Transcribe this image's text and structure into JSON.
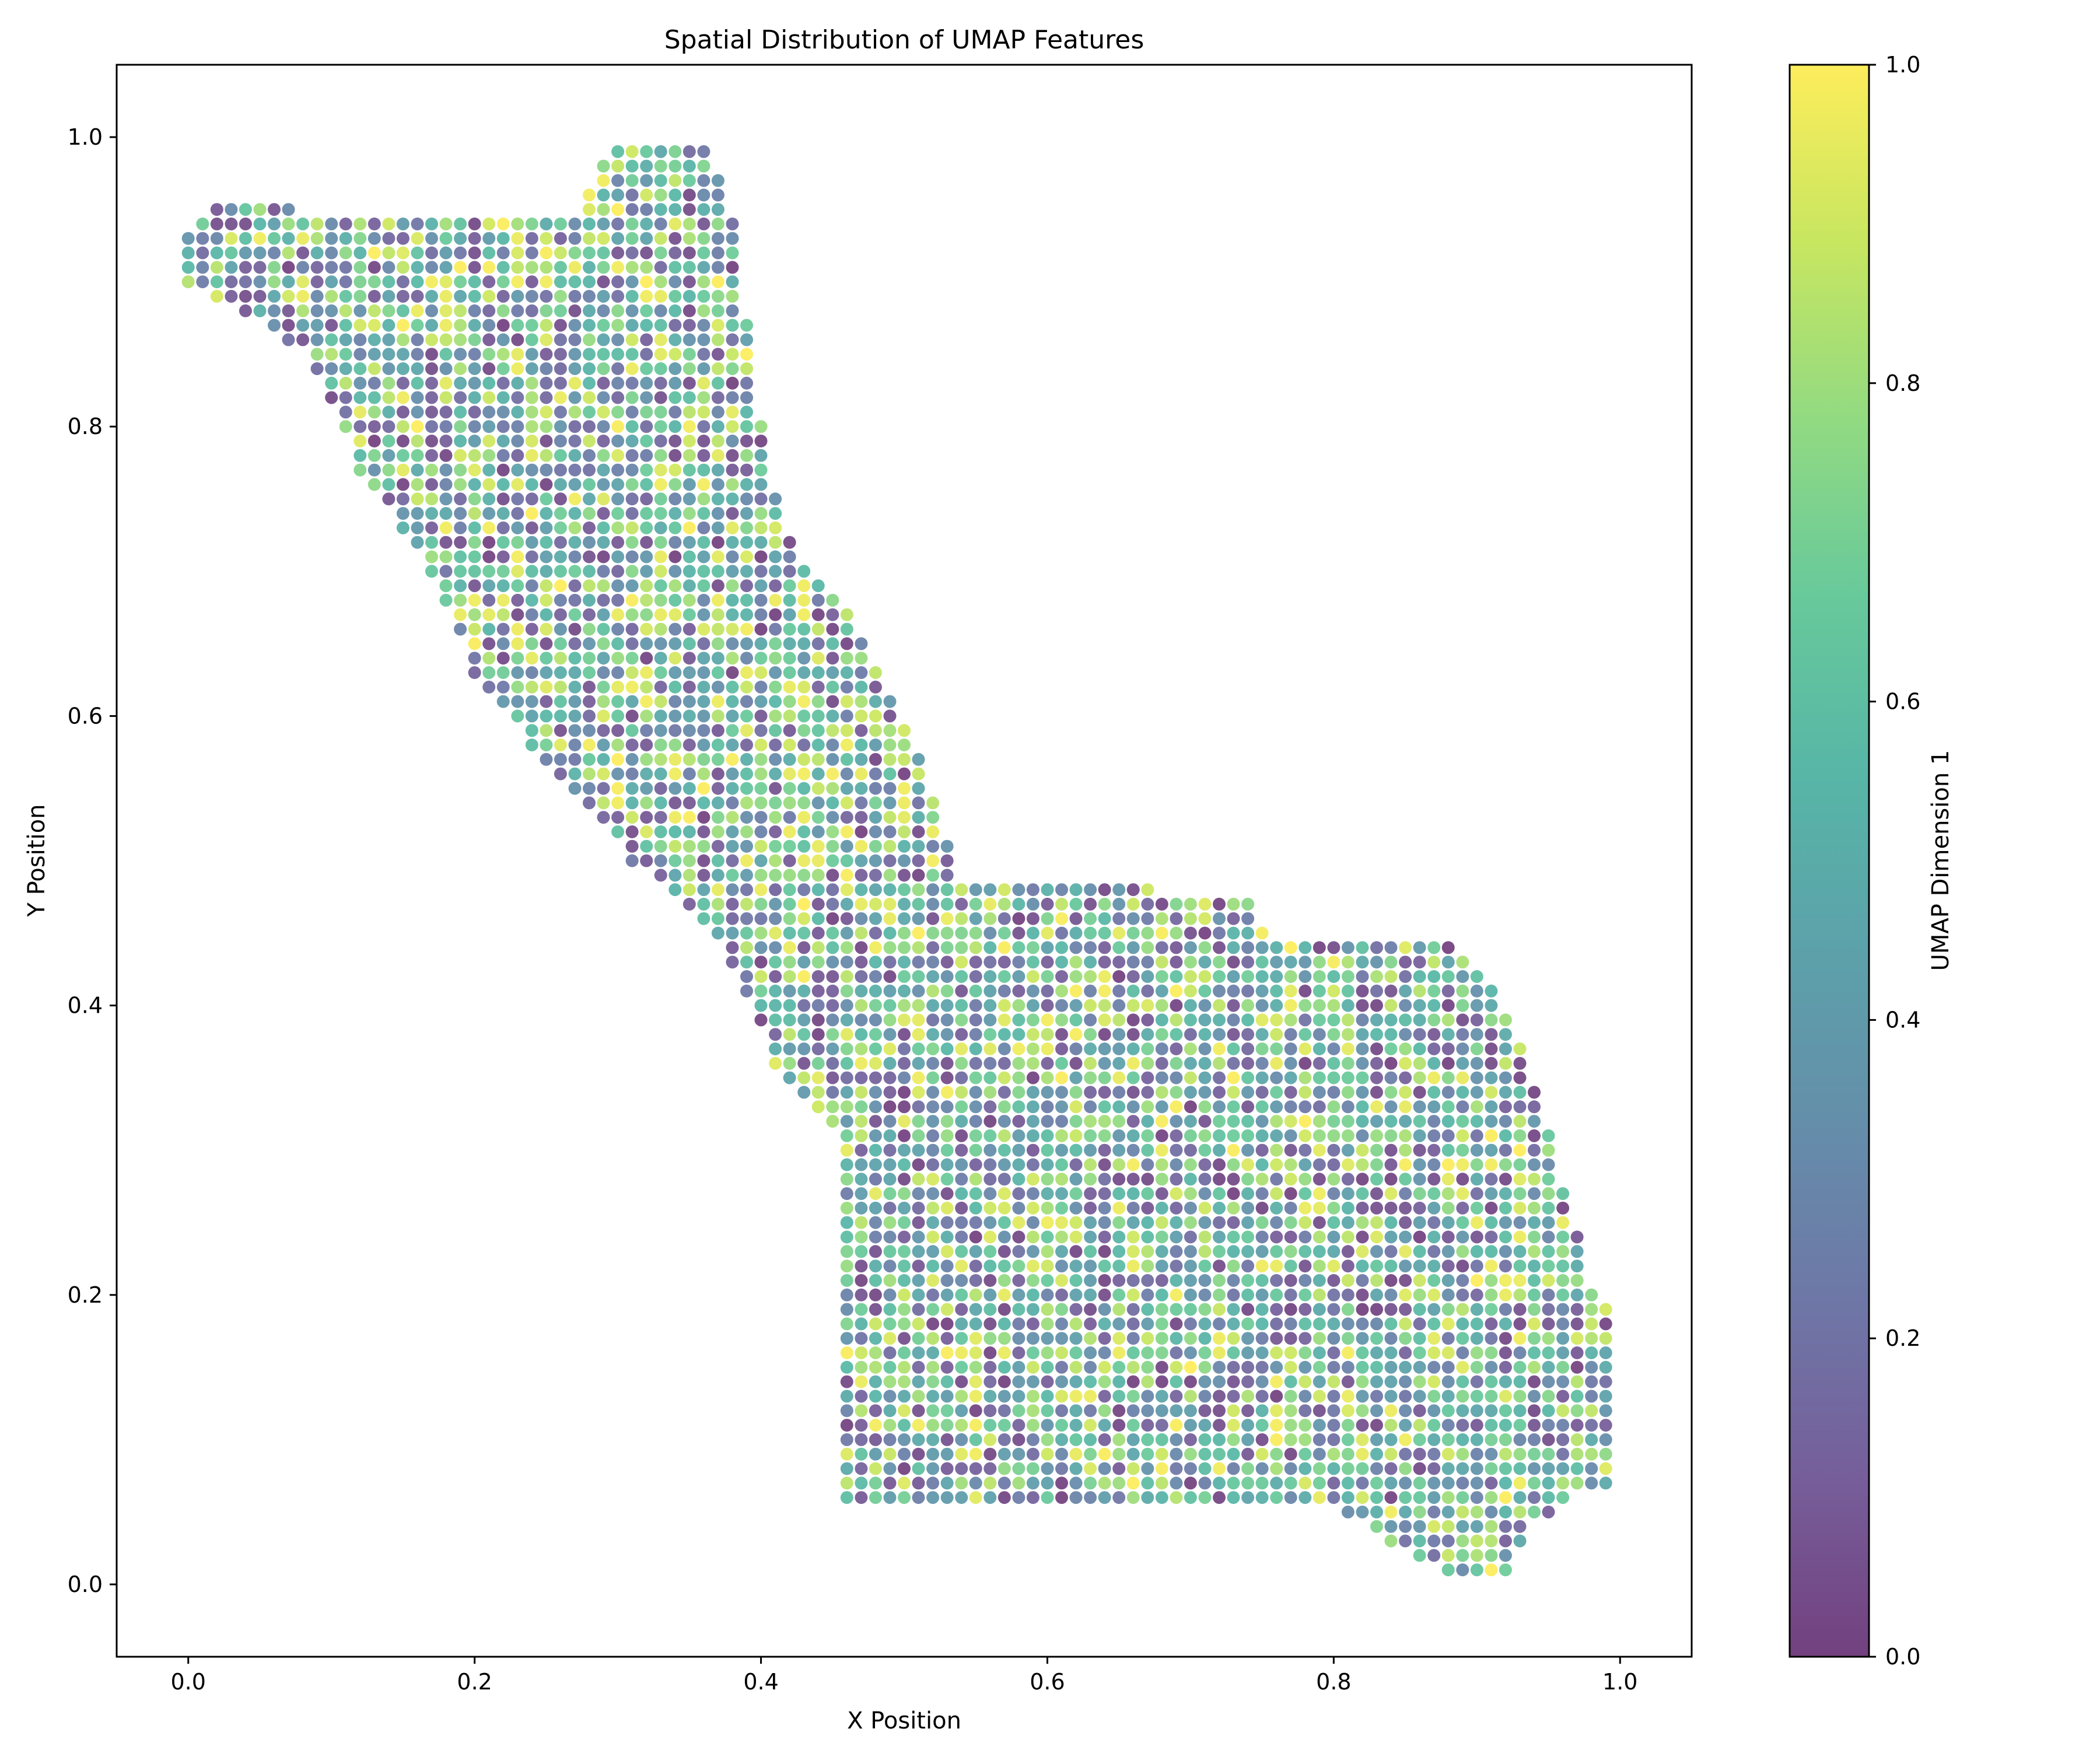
{
  "chart_data": {
    "type": "scatter",
    "title": "Spatial Distribution of UMAP Features",
    "xlabel": "X Position",
    "ylabel": "Y Position",
    "xlim": [
      -0.05,
      1.05
    ],
    "ylim": [
      -0.05,
      1.05
    ],
    "xticks": [
      "0.0",
      "0.2",
      "0.4",
      "0.6",
      "0.8",
      "1.0"
    ],
    "yticks": [
      "0.0",
      "0.2",
      "0.4",
      "0.6",
      "0.8",
      "1.0"
    ],
    "grid": false,
    "marker_alpha": 0.7,
    "point_spacing": 0.01,
    "shape_outline": [
      [
        0.0,
        0.93
      ],
      [
        0.02,
        0.955
      ],
      [
        0.075,
        0.955
      ],
      [
        0.08,
        0.945
      ],
      [
        0.27,
        0.945
      ],
      [
        0.285,
        0.975
      ],
      [
        0.295,
        1.0
      ],
      [
        0.36,
        1.0
      ],
      [
        0.375,
        0.965
      ],
      [
        0.385,
        0.92
      ],
      [
        0.395,
        0.835
      ],
      [
        0.41,
        0.755
      ],
      [
        0.425,
        0.71
      ],
      [
        0.455,
        0.685
      ],
      [
        0.49,
        0.615
      ],
      [
        0.51,
        0.58
      ],
      [
        0.525,
        0.535
      ],
      [
        0.54,
        0.49
      ],
      [
        0.565,
        0.485
      ],
      [
        0.62,
        0.485
      ],
      [
        0.74,
        0.475
      ],
      [
        0.755,
        0.445
      ],
      [
        0.88,
        0.445
      ],
      [
        0.91,
        0.415
      ],
      [
        0.935,
        0.36
      ],
      [
        0.955,
        0.3
      ],
      [
        0.965,
        0.26
      ],
      [
        0.98,
        0.21
      ],
      [
        1.0,
        0.185
      ],
      [
        1.0,
        0.07
      ],
      [
        0.97,
        0.06
      ],
      [
        0.935,
        0.04
      ],
      [
        0.92,
        0.005
      ],
      [
        0.88,
        0.01
      ],
      [
        0.84,
        0.03
      ],
      [
        0.79,
        0.06
      ],
      [
        0.46,
        0.06
      ],
      [
        0.46,
        0.3
      ],
      [
        0.41,
        0.36
      ],
      [
        0.38,
        0.43
      ],
      [
        0.355,
        0.46
      ],
      [
        0.31,
        0.5
      ],
      [
        0.255,
        0.56
      ],
      [
        0.2,
        0.63
      ],
      [
        0.17,
        0.7
      ],
      [
        0.12,
        0.77
      ],
      [
        0.085,
        0.85
      ],
      [
        0.0,
        0.9
      ]
    ],
    "notch": {
      "x_range": [
        0.635,
        0.64
      ],
      "y": 0.485,
      "note": "small protrusion at top of lower lobe"
    },
    "colorbar": {
      "label": "UMAP Dimension 1",
      "range": [
        0.0,
        1.0
      ],
      "ticks": [
        "0.0",
        "0.2",
        "0.4",
        "0.6",
        "0.8",
        "1.0"
      ],
      "colormap": "viridis",
      "stops": [
        "#440154",
        "#482878",
        "#3e4989",
        "#31688e",
        "#26828e",
        "#1f9e89",
        "#35b779",
        "#6ece58",
        "#b5de2b",
        "#fde725"
      ]
    },
    "series": [
      {
        "values": "UMAP Dimension 1 per point, uniformly distributed in [0, 1] across the grid inside the outline"
      }
    ]
  }
}
